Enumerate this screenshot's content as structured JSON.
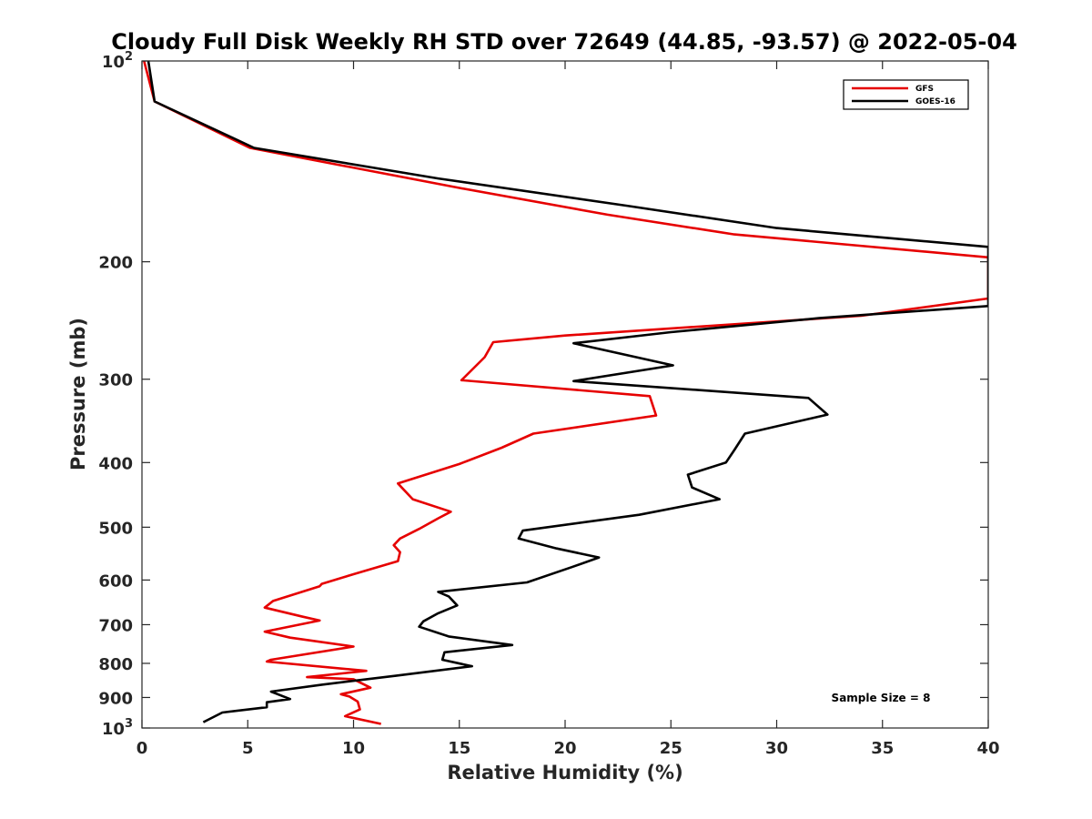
{
  "chart_data": {
    "type": "line",
    "title": "Cloudy Full Disk Weekly RH STD over 72649 (44.85, -93.57) @ 2022-05-04",
    "xlabel": "Relative Humidity (%)",
    "ylabel": "Pressure (mb)",
    "xlim": [
      0,
      40
    ],
    "ylim": [
      100,
      1000
    ],
    "yscale": "log",
    "y_reversed": true,
    "grid": false,
    "legend_position": "top-right",
    "x_ticks": [
      "0",
      "5",
      "10",
      "15",
      "20",
      "25",
      "30",
      "35",
      "40"
    ],
    "y_ticks": [
      {
        "value": 100,
        "base": "10",
        "exp": "2"
      },
      {
        "value": 200,
        "label": "200"
      },
      {
        "value": 300,
        "label": "300"
      },
      {
        "value": 400,
        "label": "400"
      },
      {
        "value": 500,
        "label": "500"
      },
      {
        "value": 600,
        "label": "600"
      },
      {
        "value": 700,
        "label": "700"
      },
      {
        "value": 800,
        "label": "800"
      },
      {
        "value": 900,
        "label": "900"
      },
      {
        "value": 1000,
        "base": "10",
        "exp": "3"
      }
    ],
    "series": [
      {
        "name": "GFS",
        "color": "#e60000",
        "points": [
          [
            0.1,
            100
          ],
          [
            0.6,
            115
          ],
          [
            5.1,
            135
          ],
          [
            15.0,
            155
          ],
          [
            22.0,
            170
          ],
          [
            28.0,
            182
          ],
          [
            40.0,
            197
          ],
          [
            40.0,
            227
          ],
          [
            34.0,
            241
          ],
          [
            20.0,
            258
          ],
          [
            16.6,
            264
          ],
          [
            16.2,
            278
          ],
          [
            15.1,
            301
          ],
          [
            24.0,
            318
          ],
          [
            24.3,
            340
          ],
          [
            18.5,
            362
          ],
          [
            17.0,
            380
          ],
          [
            15.0,
            402
          ],
          [
            12.1,
            430
          ],
          [
            12.8,
            454
          ],
          [
            14.6,
            474
          ],
          [
            14.0,
            485
          ],
          [
            13.1,
            503
          ],
          [
            12.2,
            520
          ],
          [
            11.9,
            532
          ],
          [
            12.2,
            545
          ],
          [
            12.1,
            562
          ],
          [
            10.0,
            588
          ],
          [
            8.5,
            608
          ],
          [
            8.4,
            613
          ],
          [
            6.2,
            645
          ],
          [
            5.8,
            660
          ],
          [
            7.6,
            681
          ],
          [
            8.4,
            690
          ],
          [
            5.8,
            717
          ],
          [
            7.0,
            732
          ],
          [
            10.0,
            755
          ],
          [
            6.1,
            790
          ],
          [
            5.9,
            795
          ],
          [
            10.6,
            821
          ],
          [
            7.8,
            839
          ],
          [
            10.0,
            845
          ],
          [
            10.8,
            870
          ],
          [
            9.4,
            890
          ],
          [
            9.8,
            897
          ],
          [
            10.2,
            913
          ],
          [
            10.3,
            938
          ],
          [
            9.6,
            960
          ],
          [
            11.3,
            986
          ]
        ]
      },
      {
        "name": "GOES-16",
        "color": "#000000",
        "points": [
          [
            0.3,
            100
          ],
          [
            0.6,
            115
          ],
          [
            5.3,
            135
          ],
          [
            14.0,
            150
          ],
          [
            23.0,
            165
          ],
          [
            30.0,
            178
          ],
          [
            40.0,
            190
          ],
          [
            40.0,
            233
          ],
          [
            32.0,
            243
          ],
          [
            25.0,
            255
          ],
          [
            20.4,
            265
          ],
          [
            25.1,
            286
          ],
          [
            20.4,
            302
          ],
          [
            31.5,
            320
          ],
          [
            32.4,
            339
          ],
          [
            28.5,
            362
          ],
          [
            28.0,
            383
          ],
          [
            27.6,
            400
          ],
          [
            25.8,
            417
          ],
          [
            26.0,
            436
          ],
          [
            27.3,
            454
          ],
          [
            23.5,
            479
          ],
          [
            18.0,
            506
          ],
          [
            17.8,
            520
          ],
          [
            19.6,
            538
          ],
          [
            21.6,
            555
          ],
          [
            20.3,
            574
          ],
          [
            18.2,
            605
          ],
          [
            14.0,
            625
          ],
          [
            14.5,
            635
          ],
          [
            14.9,
            655
          ],
          [
            14.0,
            673
          ],
          [
            13.3,
            692
          ],
          [
            13.1,
            705
          ],
          [
            14.5,
            729
          ],
          [
            17.5,
            751
          ],
          [
            14.3,
            770
          ],
          [
            14.2,
            790
          ],
          [
            15.6,
            808
          ],
          [
            12.0,
            835
          ],
          [
            8.5,
            861
          ],
          [
            6.1,
            882
          ],
          [
            7.0,
            905
          ],
          [
            5.9,
            915
          ],
          [
            5.9,
            923
          ],
          [
            5.9,
            931
          ],
          [
            3.8,
            948
          ],
          [
            2.9,
            980
          ]
        ]
      }
    ],
    "annotations": [
      "Sample Size = 8"
    ]
  }
}
